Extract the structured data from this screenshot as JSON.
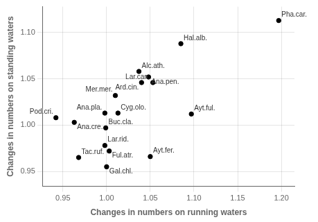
{
  "chart_data": {
    "type": "scatter",
    "x": [
      1.197,
      1.085,
      1.037,
      1.048,
      1.04,
      1.053,
      1.01,
      0.998,
      1.013,
      1.097,
      0.942,
      0.963,
      0.999,
      0.998,
      1.003,
      0.968,
      1.0,
      1.05
    ],
    "values": [
      1.113,
      1.088,
      1.058,
      1.052,
      1.046,
      1.046,
      1.032,
      1.013,
      1.013,
      1.012,
      1.008,
      1.003,
      0.997,
      0.978,
      0.972,
      0.965,
      0.955,
      0.966
    ],
    "labels": [
      "Pha.car.",
      "Hal.alb.",
      "Alc.ath.",
      "Ana.pen.",
      "Ard.cin.",
      "Lar.can.",
      "Mer.mer.",
      "Ana.pla.",
      "Cyg.olo.",
      "Ayt.ful.",
      "Pod.cri.",
      "Ana.cre.",
      "Buc.cla.",
      "Lar.rid.",
      "Ful.atr.",
      "Tac.ruf.",
      "Gal.chl.",
      "Ayt.fer."
    ],
    "xlabel": "Changes in numbers on running waters",
    "ylabel": "Changes in numbers on standing waters",
    "xlim": [
      0.927,
      1.215
    ],
    "ylim": [
      0.934,
      1.128
    ],
    "xticks": [
      0.95,
      {
        "value": 1,
        "label": "1.00"
      },
      1.05,
      {
        "value": 1.1,
        "label": "1.10"
      },
      1.15,
      {
        "value": 1.2,
        "label": "1.20"
      }
    ],
    "yticks": [
      0.95,
      {
        "value": 1,
        "label": "1.00"
      },
      1.05,
      {
        "value": 1.1,
        "label": "1.10"
      }
    ],
    "grid": true,
    "color": "#000000",
    "marker": "circle"
  }
}
